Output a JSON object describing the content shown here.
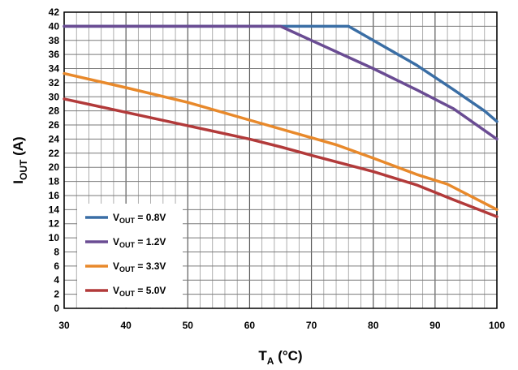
{
  "chart_data": {
    "type": "line",
    "xlabel": {
      "main": "T",
      "sub": "A",
      "rest": " (°C)"
    },
    "ylabel": {
      "main": "I",
      "sub": "OUT",
      "rest": " (A)"
    },
    "xlim": [
      30,
      100
    ],
    "ylim": [
      0,
      42
    ],
    "x_ticks": [
      30,
      40,
      50,
      60,
      70,
      80,
      90,
      100
    ],
    "y_ticks": [
      0,
      2,
      4,
      6,
      8,
      10,
      12,
      14,
      16,
      18,
      20,
      22,
      24,
      26,
      28,
      30,
      32,
      34,
      36,
      38,
      40,
      42
    ],
    "grid": true,
    "legend_position": "bottom-left",
    "series": [
      {
        "name": "V",
        "name_sub": "OUT",
        "name_rest": " = 0.8V",
        "color": "#3a6ea5",
        "x": [
          30,
          65,
          76,
          87,
          93,
          98,
          100
        ],
        "y": [
          40,
          40,
          40,
          34.5,
          31,
          28,
          26.5
        ]
      },
      {
        "name": "V",
        "name_sub": "OUT",
        "name_rest": " = 1.2V",
        "color": "#6a4c93",
        "x": [
          30,
          65,
          70,
          80,
          87,
          93,
          100
        ],
        "y": [
          40,
          40,
          38,
          34,
          31,
          28.3,
          24
        ]
      },
      {
        "name": "V",
        "name_sub": "OUT",
        "name_rest": " = 3.3V",
        "color": "#e8892b",
        "x": [
          30,
          40,
          50,
          60,
          74,
          80,
          87,
          92,
          100
        ],
        "y": [
          33.3,
          31.3,
          29.2,
          26.7,
          23.2,
          21.3,
          19,
          17.6,
          14
        ]
      },
      {
        "name": "V",
        "name_sub": "OUT",
        "name_rest": " = 5.0V",
        "color": "#b23a3a",
        "x": [
          30,
          40,
          50,
          60,
          65,
          70,
          80,
          87,
          93,
          100
        ],
        "y": [
          29.7,
          27.8,
          25.9,
          24,
          22.9,
          21.7,
          19.4,
          17.5,
          15.4,
          13
        ]
      }
    ]
  }
}
